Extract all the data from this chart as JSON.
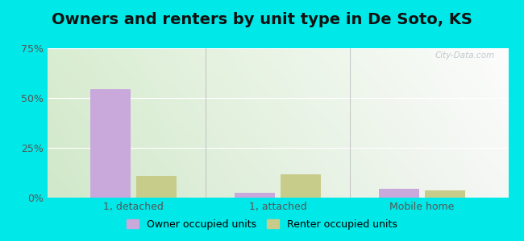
{
  "title": "Owners and renters by unit type in De Soto, KS",
  "categories": [
    "1, detached",
    "1, attached",
    "Mobile home"
  ],
  "owner_values": [
    54.5,
    2.5,
    4.5
  ],
  "renter_values": [
    11.0,
    11.5,
    3.5
  ],
  "owner_color": "#c9a8dc",
  "renter_color": "#c8cc8a",
  "ylim": [
    0,
    75
  ],
  "yticks": [
    0,
    25,
    50,
    75
  ],
  "ytick_labels": [
    "0%",
    "25%",
    "50%",
    "75%"
  ],
  "bar_width": 0.28,
  "bg_color_topleft": "#cce8c0",
  "bg_color_topright": "#e8f5ee",
  "bg_color_bottomleft": "#d8eec8",
  "bg_color_bottomright": "#f5faf5",
  "outer_bg": "#00e8e8",
  "watermark": "City-Data.com",
  "legend_owner": "Owner occupied units",
  "legend_renter": "Renter occupied units",
  "title_fontsize": 14,
  "tick_fontsize": 9,
  "legend_fontsize": 9,
  "grid_color": "#ffffff",
  "divider_color": "#bbbbbb",
  "text_color": "#555555"
}
